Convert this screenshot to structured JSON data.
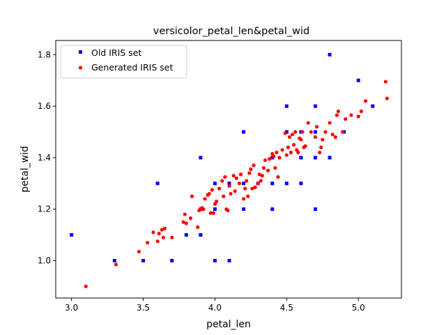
{
  "chart_data": {
    "type": "scatter",
    "title": "versicolor_petal_len&petal_wid",
    "xlabel": "petal_len",
    "ylabel": "petal_wid",
    "xlim": [
      2.89,
      5.3
    ],
    "ylim": [
      0.855,
      1.855
    ],
    "xticks": [
      3.0,
      3.5,
      4.0,
      4.5,
      5.0
    ],
    "xtick_labels": [
      "3.0",
      "3.5",
      "4.0",
      "4.5",
      "5.0"
    ],
    "yticks": [
      1.0,
      1.2,
      1.4,
      1.6,
      1.8
    ],
    "ytick_labels": [
      "1.0",
      "1.2",
      "1.4",
      "1.6",
      "1.8"
    ],
    "grid": false,
    "legend_position": "top-left",
    "series": [
      {
        "name": "Old IRIS set",
        "color": "#0000ff",
        "marker": "square",
        "points": [
          [
            3.0,
            1.1
          ],
          [
            3.3,
            1.0
          ],
          [
            3.5,
            1.0
          ],
          [
            3.6,
            1.3
          ],
          [
            3.7,
            1.0
          ],
          [
            3.8,
            1.1
          ],
          [
            3.9,
            1.1
          ],
          [
            3.9,
            1.2
          ],
          [
            3.9,
            1.4
          ],
          [
            4.0,
            1.0
          ],
          [
            4.0,
            1.2
          ],
          [
            4.0,
            1.3
          ],
          [
            4.1,
            1.0
          ],
          [
            4.1,
            1.3
          ],
          [
            4.2,
            1.2
          ],
          [
            4.2,
            1.3
          ],
          [
            4.2,
            1.5
          ],
          [
            4.3,
            1.3
          ],
          [
            4.4,
            1.2
          ],
          [
            4.4,
            1.3
          ],
          [
            4.4,
            1.4
          ],
          [
            4.5,
            1.3
          ],
          [
            4.5,
            1.5
          ],
          [
            4.5,
            1.6
          ],
          [
            4.6,
            1.3
          ],
          [
            4.6,
            1.4
          ],
          [
            4.6,
            1.5
          ],
          [
            4.7,
            1.2
          ],
          [
            4.7,
            1.4
          ],
          [
            4.7,
            1.5
          ],
          [
            4.7,
            1.6
          ],
          [
            4.8,
            1.4
          ],
          [
            4.8,
            1.8
          ],
          [
            4.9,
            1.5
          ],
          [
            5.0,
            1.7
          ],
          [
            5.1,
            1.6
          ]
        ]
      },
      {
        "name": "Generated IRIS set",
        "color": "#ff0000",
        "marker": "circle",
        "points": [
          [
            3.1,
            0.9
          ],
          [
            3.31,
            0.985
          ],
          [
            3.47,
            1.035
          ],
          [
            3.53,
            1.07
          ],
          [
            3.57,
            1.11
          ],
          [
            3.6,
            1.075
          ],
          [
            3.61,
            1.105
          ],
          [
            3.63,
            1.12
          ],
          [
            3.64,
            1.09
          ],
          [
            3.65,
            1.125
          ],
          [
            3.7,
            1.09
          ],
          [
            3.78,
            1.15
          ],
          [
            3.79,
            1.18
          ],
          [
            3.8,
            1.145
          ],
          [
            3.83,
            1.165
          ],
          [
            3.84,
            1.25
          ],
          [
            3.88,
            1.13
          ],
          [
            3.89,
            1.195
          ],
          [
            3.9,
            1.2
          ],
          [
            3.91,
            1.205
          ],
          [
            3.92,
            1.2
          ],
          [
            3.93,
            1.24
          ],
          [
            3.95,
            1.255
          ],
          [
            3.96,
            1.26
          ],
          [
            3.97,
            1.185
          ],
          [
            3.98,
            1.275
          ],
          [
            3.99,
            1.185
          ],
          [
            4.0,
            1.22
          ],
          [
            4.01,
            1.23
          ],
          [
            4.03,
            1.28
          ],
          [
            4.05,
            1.31
          ],
          [
            4.06,
            1.25
          ],
          [
            4.07,
            1.325
          ],
          [
            4.08,
            1.2
          ],
          [
            4.09,
            1.195
          ],
          [
            4.1,
            1.29
          ],
          [
            4.11,
            1.26
          ],
          [
            4.13,
            1.33
          ],
          [
            4.14,
            1.27
          ],
          [
            4.15,
            1.32
          ],
          [
            4.17,
            1.3
          ],
          [
            4.18,
            1.335
          ],
          [
            4.2,
            1.24
          ],
          [
            4.21,
            1.28
          ],
          [
            4.22,
            1.31
          ],
          [
            4.23,
            1.25
          ],
          [
            4.24,
            1.34
          ],
          [
            4.25,
            1.355
          ],
          [
            4.26,
            1.28
          ],
          [
            4.27,
            1.37
          ],
          [
            4.28,
            1.285
          ],
          [
            4.3,
            1.3
          ],
          [
            4.31,
            1.335
          ],
          [
            4.32,
            1.31
          ],
          [
            4.33,
            1.33
          ],
          [
            4.34,
            1.36
          ],
          [
            4.35,
            1.39
          ],
          [
            4.37,
            1.35
          ],
          [
            4.38,
            1.395
          ],
          [
            4.4,
            1.415
          ],
          [
            4.41,
            1.405
          ],
          [
            4.42,
            1.36
          ],
          [
            4.43,
            1.42
          ],
          [
            4.44,
            1.325
          ],
          [
            4.45,
            1.4
          ],
          [
            4.47,
            1.43
          ],
          [
            4.49,
            1.495
          ],
          [
            4.5,
            1.41
          ],
          [
            4.51,
            1.44
          ],
          [
            4.52,
            1.48
          ],
          [
            4.53,
            1.42
          ],
          [
            4.54,
            1.49
          ],
          [
            4.55,
            1.45
          ],
          [
            4.56,
            1.5
          ],
          [
            4.57,
            1.43
          ],
          [
            4.58,
            1.42
          ],
          [
            4.59,
            1.475
          ],
          [
            4.6,
            1.47
          ],
          [
            4.61,
            1.5
          ],
          [
            4.62,
            1.44
          ],
          [
            4.63,
            1.445
          ],
          [
            4.65,
            1.535
          ],
          [
            4.67,
            1.5
          ],
          [
            4.7,
            1.48
          ],
          [
            4.71,
            1.52
          ],
          [
            4.73,
            1.42
          ],
          [
            4.74,
            1.44
          ],
          [
            4.75,
            1.47
          ],
          [
            4.77,
            1.5
          ],
          [
            4.8,
            1.535
          ],
          [
            4.82,
            1.49
          ],
          [
            4.84,
            1.48
          ],
          [
            4.85,
            1.565
          ],
          [
            4.86,
            1.58
          ],
          [
            4.89,
            1.5
          ],
          [
            4.91,
            1.55
          ],
          [
            4.95,
            1.565
          ],
          [
            5.0,
            1.56
          ],
          [
            5.02,
            1.58
          ],
          [
            5.05,
            1.62
          ],
          [
            5.19,
            1.695
          ],
          [
            5.2,
            1.63
          ]
        ]
      }
    ]
  }
}
